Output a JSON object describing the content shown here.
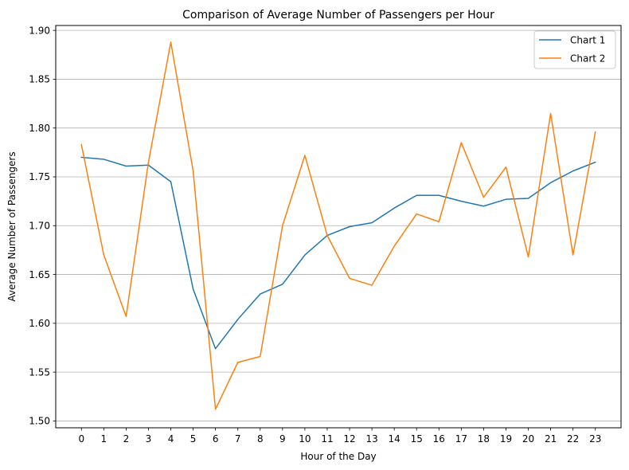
{
  "chart_data": {
    "type": "line",
    "title": "Comparison of Average Number of Passengers per Hour",
    "xlabel": "Hour of the Day",
    "ylabel": "Average Number of Passengers",
    "x": [
      0,
      1,
      2,
      3,
      4,
      5,
      6,
      7,
      8,
      9,
      10,
      11,
      12,
      13,
      14,
      15,
      16,
      17,
      18,
      19,
      20,
      21,
      22,
      23
    ],
    "xtick_labels": [
      "0",
      "1",
      "2",
      "3",
      "4",
      "5",
      "6",
      "7",
      "8",
      "9",
      "10",
      "11",
      "12",
      "13",
      "14",
      "15",
      "16",
      "17",
      "18",
      "19",
      "20",
      "21",
      "22",
      "23"
    ],
    "ylim": [
      1.493,
      1.905
    ],
    "xlim": [
      -1.15,
      24.15
    ],
    "yticks": [
      1.5,
      1.55,
      1.6,
      1.65,
      1.7,
      1.75,
      1.8,
      1.85,
      1.9
    ],
    "ytick_labels": [
      "1.50",
      "1.55",
      "1.60",
      "1.65",
      "1.70",
      "1.75",
      "1.80",
      "1.85",
      "1.90"
    ],
    "grid": "horizontal",
    "legend": "top-right",
    "series": [
      {
        "name": "Chart 1",
        "color": "#1f77b4",
        "values": [
          1.77,
          1.768,
          1.761,
          1.762,
          1.745,
          1.635,
          1.574,
          1.604,
          1.63,
          1.64,
          1.67,
          1.69,
          1.699,
          1.703,
          1.718,
          1.731,
          1.731,
          1.725,
          1.72,
          1.727,
          1.728,
          1.744,
          1.756,
          1.765
        ]
      },
      {
        "name": "Chart 2",
        "color": "#ff7f0e",
        "values": [
          1.783,
          1.67,
          1.607,
          1.765,
          1.888,
          1.756,
          1.512,
          1.56,
          1.566,
          1.7,
          1.772,
          1.69,
          1.646,
          1.639,
          1.679,
          1.712,
          1.704,
          1.785,
          1.729,
          1.76,
          1.668,
          1.815,
          1.67,
          1.796
        ]
      }
    ]
  }
}
